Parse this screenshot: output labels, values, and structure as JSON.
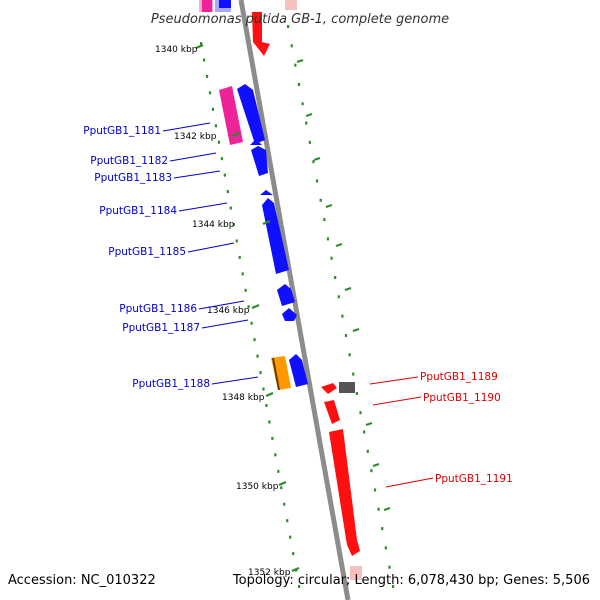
{
  "title": "Pseudomonas putida GB-1, complete genome",
  "footer": {
    "accession": "Accession: NC_010322",
    "info": "Topology: circular; Length: 6,078,430 bp; Genes: 5,506"
  },
  "colors": {
    "backbone": "#8c8c8c",
    "forward_label": "#0000cc",
    "reverse_label": "#dd0000",
    "dots": "#2d8a2d",
    "blue_gene": "#1010ff",
    "red_gene": "#ff1010",
    "pink_gene": "#ee2299",
    "orange_gene": "#ff9900",
    "gray_gene": "#555555"
  },
  "ticks": [
    {
      "label": "1340 kbp"
    },
    {
      "label": "1342 kbp"
    },
    {
      "label": "1344 kbp"
    },
    {
      "label": "1346 kbp"
    },
    {
      "label": "1348 kbp"
    },
    {
      "label": "1350 kbp"
    },
    {
      "label": "1352 kbp"
    }
  ],
  "gene_labels": [
    {
      "label": "PputGB1_1181",
      "strand": "forward"
    },
    {
      "label": "PputGB1_1182",
      "strand": "forward"
    },
    {
      "label": "PputGB1_1183",
      "strand": "forward"
    },
    {
      "label": "PputGB1_1184",
      "strand": "forward"
    },
    {
      "label": "PputGB1_1185",
      "strand": "forward"
    },
    {
      "label": "PputGB1_1186",
      "strand": "forward"
    },
    {
      "label": "PputGB1_1187",
      "strand": "forward"
    },
    {
      "label": "PputGB1_1188",
      "strand": "forward"
    },
    {
      "label": "PputGB1_1189",
      "strand": "reverse"
    },
    {
      "label": "PputGB1_1190",
      "strand": "reverse"
    },
    {
      "label": "PputGB1_1191",
      "strand": "reverse"
    }
  ]
}
